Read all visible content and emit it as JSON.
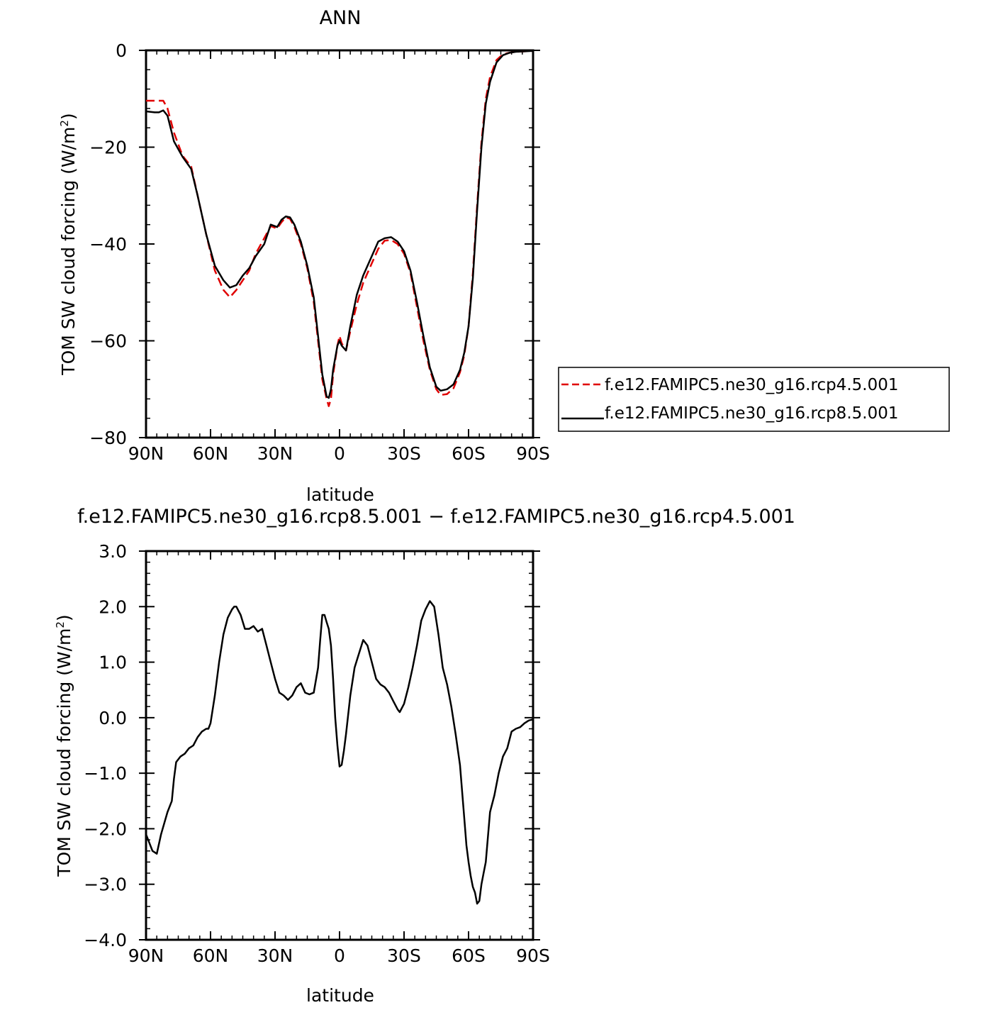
{
  "chart_data": [
    {
      "type": "line",
      "title": "ANN",
      "xlabel": "latitude",
      "ylabel": "TOM SW cloud forcing (W/m²)",
      "xlim": [
        90,
        -90
      ],
      "ylim": [
        -80,
        0
      ],
      "xticks": [
        90,
        60,
        30,
        0,
        -30,
        -60,
        -90
      ],
      "xtick_labels": [
        "90N",
        "60N",
        "30N",
        "0",
        "30S",
        "60S",
        "90S"
      ],
      "yticks": [
        0,
        -20,
        -40,
        -60,
        -80
      ],
      "ytick_labels": [
        "0",
        "−20",
        "−40",
        "−60",
        "−80"
      ],
      "legend_position": "right",
      "series": [
        {
          "name": "f.e12.FAMIPC5.ne30_g16.rcp4.5.001",
          "color": "#e00000",
          "dash": true,
          "x": [
            90,
            86,
            82,
            80,
            77,
            73,
            69,
            66,
            62,
            58,
            54,
            51,
            48,
            45,
            42,
            39,
            35,
            32,
            29,
            27,
            25,
            23,
            21,
            18,
            15,
            12,
            10,
            8,
            6,
            5,
            4,
            3,
            1,
            0,
            -1,
            -3,
            -5,
            -8,
            -11,
            -15,
            -18,
            -21,
            -24,
            -27,
            -30,
            -33,
            -36,
            -39,
            -42,
            -45,
            -47,
            -50,
            -53,
            -56,
            -58,
            -60,
            -62,
            -64,
            -66,
            -68,
            -70,
            -73,
            -76,
            -79,
            -82,
            -86,
            -90
          ],
          "y": [
            -10.4,
            -10.4,
            -10.4,
            -12.0,
            -17.0,
            -21.8,
            -24.0,
            -30.0,
            -38.0,
            -45.5,
            -49.5,
            -51.0,
            -49.5,
            -47.5,
            -45.5,
            -42.0,
            -38.8,
            -36.3,
            -36.8,
            -35.5,
            -34.5,
            -34.8,
            -36.5,
            -40.0,
            -45.0,
            -52.0,
            -60.0,
            -68.0,
            -72.0,
            -73.5,
            -72.0,
            -67.0,
            -61.0,
            -59.0,
            -60.5,
            -62.0,
            -58.0,
            -52.5,
            -48.0,
            -44.0,
            -41.0,
            -39.3,
            -39.2,
            -40.0,
            -42.0,
            -46.0,
            -53.0,
            -60.0,
            -66.0,
            -70.0,
            -71.2,
            -71.0,
            -69.8,
            -66.5,
            -63.0,
            -57.0,
            -46.0,
            -32.0,
            -19.0,
            -10.0,
            -5.5,
            -2.0,
            -0.8,
            -0.5,
            -0.3,
            -0.2,
            -0.1
          ]
        },
        {
          "name": "f.e12.FAMIPC5.ne30_g16.rcp8.5.001",
          "color": "#000000",
          "dash": false,
          "x": [
            90,
            86,
            84,
            82,
            80,
            77,
            73,
            69,
            66,
            62,
            58,
            54,
            51,
            48,
            45,
            42,
            39,
            35,
            32,
            29,
            27,
            25,
            23,
            21,
            18,
            15,
            12,
            10,
            8,
            6,
            5,
            4,
            3,
            1,
            0,
            -1,
            -3,
            -5,
            -8,
            -11,
            -15,
            -18,
            -21,
            -24,
            -27,
            -30,
            -33,
            -36,
            -39,
            -42,
            -45,
            -47,
            -50,
            -53,
            -56,
            -58,
            -60,
            -62,
            -64,
            -66,
            -68,
            -70,
            -73,
            -76,
            -79,
            -82,
            -86,
            -90
          ],
          "y": [
            -12.6,
            -12.8,
            -12.8,
            -12.4,
            -13.5,
            -18.8,
            -22.0,
            -24.5,
            -30.0,
            -38.0,
            -44.5,
            -47.5,
            -49.0,
            -48.5,
            -46.5,
            -45.0,
            -42.5,
            -40.0,
            -36.0,
            -36.5,
            -35.0,
            -34.3,
            -34.5,
            -36.0,
            -39.5,
            -44.5,
            -51.0,
            -59.0,
            -67.0,
            -71.5,
            -71.8,
            -70.0,
            -66.0,
            -61.0,
            -60.0,
            -61.0,
            -62.0,
            -57.0,
            -50.5,
            -46.5,
            -42.5,
            -39.5,
            -38.8,
            -38.6,
            -39.5,
            -41.5,
            -45.5,
            -52.0,
            -59.0,
            -65.5,
            -69.5,
            -70.3,
            -70.0,
            -69.0,
            -66.0,
            -62.5,
            -57.0,
            -47.0,
            -33.0,
            -20.0,
            -11.0,
            -6.5,
            -2.5,
            -1.0,
            -0.5,
            -0.3,
            -0.2,
            -0.1
          ]
        }
      ]
    },
    {
      "type": "line",
      "title": "f.e12.FAMIPC5.ne30_g16.rcp8.5.001 − f.e12.FAMIPC5.ne30_g16.rcp4.5.001",
      "xlabel": "latitude",
      "ylabel": "TOM SW cloud forcing (W/m²)",
      "xlim": [
        90,
        -90
      ],
      "ylim": [
        -4.0,
        3.0
      ],
      "xticks": [
        90,
        60,
        30,
        0,
        -30,
        -60,
        -90
      ],
      "xtick_labels": [
        "90N",
        "60N",
        "30N",
        "0",
        "30S",
        "60S",
        "90S"
      ],
      "yticks": [
        3.0,
        2.0,
        1.0,
        0.0,
        -1.0,
        -2.0,
        -3.0,
        -4.0
      ],
      "ytick_labels": [
        "3.0",
        "2.0",
        "1.0",
        "0.0",
        "−1.0",
        "−2.0",
        "−3.0",
        "−4.0"
      ],
      "series": [
        {
          "color": "#000000",
          "x": [
            90,
            87,
            85,
            83,
            80,
            78,
            77,
            76,
            74,
            72,
            70,
            68,
            66,
            64,
            62,
            61,
            60,
            58,
            56,
            54,
            52,
            50,
            49,
            48,
            46,
            44,
            42,
            40,
            38,
            36,
            34,
            32,
            30,
            28,
            26,
            24,
            22,
            20,
            18,
            16,
            14,
            12,
            10,
            9,
            8,
            7,
            6,
            5,
            4,
            3,
            2,
            1,
            0,
            -1,
            -2,
            -3,
            -5,
            -7,
            -9,
            -11,
            -13,
            -15,
            -17,
            -19,
            -21,
            -23,
            -25,
            -27,
            -28,
            -30,
            -32,
            -34,
            -36,
            -38,
            -40,
            -42,
            -44,
            -46,
            -48,
            -50,
            -52,
            -54,
            -56,
            -58,
            -59,
            -60,
            -61,
            -62,
            -63,
            -64,
            -65,
            -66,
            -67,
            -68,
            -70,
            -72,
            -74,
            -76,
            -78,
            -80,
            -82,
            -84,
            -86,
            -88,
            -90
          ],
          "y": [
            -2.1,
            -2.4,
            -2.45,
            -2.1,
            -1.7,
            -1.5,
            -1.1,
            -0.8,
            -0.7,
            -0.65,
            -0.55,
            -0.5,
            -0.35,
            -0.25,
            -0.2,
            -0.2,
            -0.1,
            0.4,
            1.0,
            1.5,
            1.8,
            1.95,
            2.0,
            2.0,
            1.85,
            1.6,
            1.6,
            1.65,
            1.55,
            1.6,
            1.3,
            1.0,
            0.7,
            0.45,
            0.4,
            0.32,
            0.4,
            0.55,
            0.62,
            0.45,
            0.42,
            0.45,
            0.9,
            1.4,
            1.85,
            1.85,
            1.72,
            1.6,
            1.3,
            0.7,
            0.0,
            -0.5,
            -0.88,
            -0.85,
            -0.6,
            -0.3,
            0.4,
            0.9,
            1.15,
            1.4,
            1.3,
            1.0,
            0.7,
            0.6,
            0.55,
            0.45,
            0.3,
            0.15,
            0.1,
            0.25,
            0.55,
            0.9,
            1.3,
            1.75,
            1.95,
            2.1,
            2.0,
            1.5,
            0.9,
            0.6,
            0.2,
            -0.3,
            -0.85,
            -1.8,
            -2.3,
            -2.6,
            -2.85,
            -3.05,
            -3.15,
            -3.35,
            -3.3,
            -3.0,
            -2.8,
            -2.6,
            -1.7,
            -1.4,
            -1.0,
            -0.7,
            -0.55,
            -0.25,
            -0.2,
            -0.17,
            -0.1,
            -0.05,
            -0.03
          ]
        }
      ]
    }
  ]
}
